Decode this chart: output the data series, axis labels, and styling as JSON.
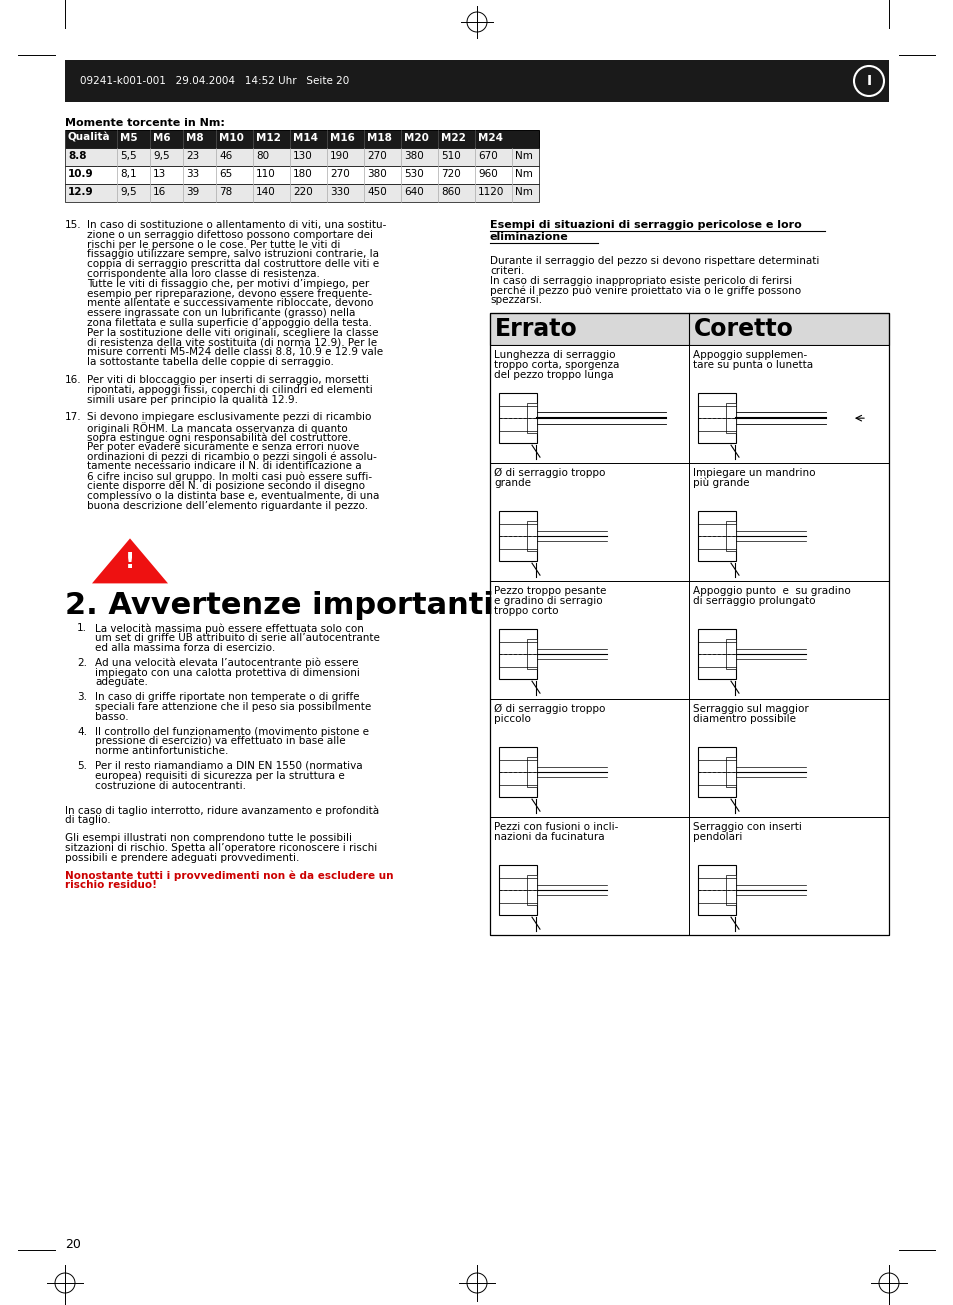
{
  "page_header": "09241-k001-001   29.04.2004   14:52 Uhr   Seite 20",
  "table_title": "Momente torcente in Nm:",
  "table_headers": [
    "Qualità",
    "M5",
    "M6",
    "M8",
    "M10",
    "M12",
    "M14",
    "M16",
    "M18",
    "M20",
    "M22",
    "M24",
    ""
  ],
  "table_rows": [
    [
      "8.8",
      "5,5",
      "9,5",
      "23",
      "46",
      "80",
      "130",
      "190",
      "270",
      "380",
      "510",
      "670",
      "Nm"
    ],
    [
      "10.9",
      "8,1",
      "13",
      "33",
      "65",
      "110",
      "180",
      "270",
      "380",
      "530",
      "720",
      "960",
      "Nm"
    ],
    [
      "12.9",
      "9,5",
      "16",
      "39",
      "78",
      "140",
      "220",
      "330",
      "450",
      "640",
      "860",
      "1120",
      "Nm"
    ]
  ],
  "left_text_items": [
    {
      "num": "15.",
      "lines": [
        "In caso di sostituzione o allentamento di viti, una sostitu-",
        "zione o un serraggio difettoso possono comportare dei",
        "rischi per le persone o le cose. Per tutte le viti di",
        "fissaggio utilizzare sempre, salvo istruzioni contrarie, la",
        "coppia di serraggio prescritta dal costruttore delle viti e",
        "corrispondente alla loro classe di resistenza.",
        "Tutte le viti di fissaggio che, per motivi d’impiego, per",
        "esempio per ripreparazione, devono essere frequente-",
        "mente allentate e successivamente ribloccate, devono",
        "essere ingrassate con un lubrificante (grasso) nella",
        "zona filettata e sulla superficie d’appoggio della testa.",
        "Per la sostituzione delle viti originali, scegliere la classe",
        "di resistenza della vite sostituita (di norma 12.9). Per le",
        "misure correnti M5-M24 delle classi 8.8, 10.9 e 12.9 vale",
        "la sottostante tabella delle coppie di serraggio."
      ]
    },
    {
      "num": "16.",
      "lines": [
        "Per viti di bloccaggio per inserti di serraggio, morsetti",
        "ripontati, appoggi fissi, coperchi di cilindri ed elementi",
        "simili usare per principio la qualità 12.9."
      ]
    },
    {
      "num": "17.",
      "lines": [
        "Si devono impiegare esclusivamente pezzi di ricambio",
        "originali RÖHM. La mancata osservanza di quanto",
        "sopra estingue ogni responsabilità del costruttore.",
        "Per poter evadere sicuramente e senza errori nuove",
        "ordinazioni di pezzi di ricambio o pezzi singoli é assolu-",
        "tamente necessario indicare il N. di identificazione a",
        "6 cifre inciso sul gruppo. In molti casi può essere suffi-",
        "ciente disporre del N. di posizione secondo il disegno",
        "complessivo o la distinta base e, eventualmente, di una",
        "buona descrizione dell’elemento riguardante il pezzo."
      ]
    }
  ],
  "section2_title": "2. Avvertenze importanti",
  "section2_items": [
    {
      "num": "1.",
      "lines": [
        "La velocità massima può essere effettuata solo con",
        "um set di griffe UB attribuito di serie all’autocentrante",
        "ed alla massima forza di esercizio."
      ]
    },
    {
      "num": "2.",
      "lines": [
        "Ad una velocità elevata l’autocentrante piò essere",
        "impiegato con una calotta protettiva di dimensioni",
        "adeguate."
      ]
    },
    {
      "num": "3.",
      "lines": [
        "In caso di griffe riportate non temperate o di griffe",
        "speciali fare attenzione che il peso sia possibilmente",
        "basso."
      ]
    },
    {
      "num": "4.",
      "lines": [
        "Il controllo del funzionamento (movimento pistone e",
        "pressione di esercizio) va effettuato in base alle",
        "norme antinfortunistiche."
      ]
    },
    {
      "num": "5.",
      "lines": [
        "Per il resto riamandiamo a DIN EN 1550 (normativa",
        "europea) requisiti di sicurezza per la struttura e",
        "costruzione di autocentranti."
      ]
    }
  ],
  "bottom_text1_lines": [
    "In caso di taglio interrotto, ridure avanzamento e profondità",
    "di taglio."
  ],
  "bottom_text2_lines": [
    "Gli esempi illustrati non comprendono tutte le possibili",
    "sitzazioni di rischio. Spetta all’operatore riconoscere i rischi",
    "possibili e prendere adeguati provvedimenti."
  ],
  "bottom_text3_lines": [
    "Nonostante tutti i provvedimenti non è da escludere un",
    "rischio residuo!"
  ],
  "right_col_title": "Esempi di situazioni di serraggio pericolose e loro\neliminazione",
  "right_col_intro_lines": [
    "Durante il serraggio del pezzo si devono rispettare determinati",
    "criteri.",
    "In caso di serraggio inappropriato esiste pericolo di ferirsi",
    "perché il pezzo può venire proiettato via o le griffe possono",
    "spezzarsi."
  ],
  "errato_label": "Errato",
  "coretto_label": "Coretto",
  "right_rows": [
    {
      "errato_text": [
        "Lunghezza di serraggio",
        "troppo corta, sporgenza",
        "del pezzo troppo lunga"
      ],
      "coretto_text": [
        "Appoggio supplemen-",
        "tare su punta o lunetta"
      ]
    },
    {
      "errato_text": [
        "Ø di serraggio troppo",
        "grande"
      ],
      "coretto_text": [
        "Impiegare un mandrino",
        "più grande"
      ]
    },
    {
      "errato_text": [
        "Pezzo troppo pesante",
        "e gradino di serragio",
        "troppo corto"
      ],
      "coretto_text": [
        "Appoggio punto  e  su gradino",
        "di serraggio prolungato"
      ]
    },
    {
      "errato_text": [
        "Ø di serraggio troppo",
        "piccolo"
      ],
      "coretto_text": [
        "Serraggio sul maggior",
        "diamentro possibile"
      ]
    },
    {
      "errato_text": [
        "Pezzi con fusioni o incli-",
        "nazioni da fucinatura"
      ],
      "coretto_text": [
        "Serraggio con inserti",
        "pendolari"
      ]
    }
  ],
  "page_number": "20",
  "bg_color": "#ffffff",
  "header_bg": "#1a1a1a",
  "border_color": "#000000",
  "red_color": "#cc0000",
  "gray_table": "#d8d8d8"
}
